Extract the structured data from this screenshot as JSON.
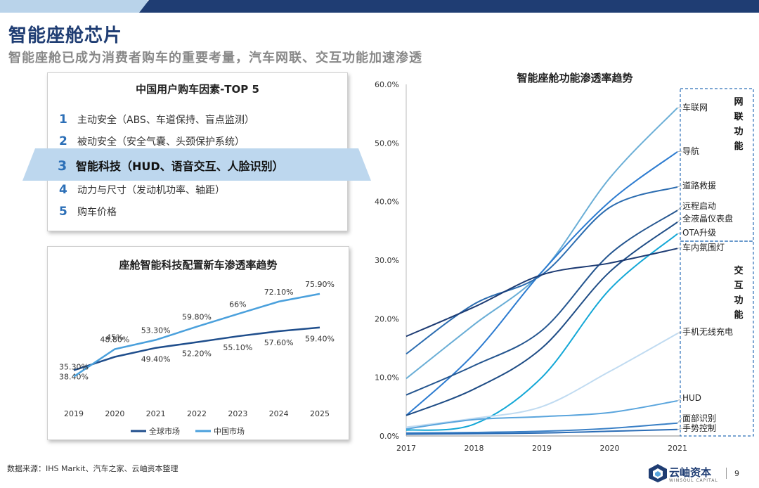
{
  "header": {
    "title": "智能座舱芯片",
    "subtitle": "智能座舱已成为消费者购车的重要考量，汽车网联、交互功能加速渗透"
  },
  "top5": {
    "title": "中国用户购车因素-TOP 5",
    "items": [
      {
        "num": "1",
        "text": "主动安全（ABS、车道保持、盲点监测）"
      },
      {
        "num": "2",
        "text": "被动安全（安全气囊、头颈保护系统）"
      },
      {
        "num": "3",
        "text": "智能科技（HUD、语音交互、人脸识别）"
      },
      {
        "num": "4",
        "text": "动力与尺寸（发动机功率、轴距）"
      },
      {
        "num": "5",
        "text": "购车价格"
      }
    ]
  },
  "chart_data": [
    {
      "type": "line",
      "title": "座舱智能科技配置新车渗透率趋势",
      "x": [
        "2019",
        "2020",
        "2021",
        "2022",
        "2023",
        "2024",
        "2025"
      ],
      "ylim": [
        30,
        80
      ],
      "series": [
        {
          "name": "全球市场",
          "values": [
            38.4,
            45,
            49.4,
            52.2,
            55.1,
            57.6,
            59.4
          ],
          "labels": [
            "38.40%",
            "45%",
            "49.40%",
            "52.20%",
            "55.10%",
            "57.60%",
            "59.40%"
          ],
          "color": "#1f4e8c"
        },
        {
          "name": "中国市场",
          "values": [
            35.3,
            48.8,
            53.3,
            59.8,
            66,
            72.1,
            75.9
          ],
          "labels": [
            "35.30%",
            "48.80%",
            "53.30%",
            "59.80%",
            "66%",
            "72.10%",
            "75.90%"
          ],
          "color": "#4aa0dc"
        }
      ]
    },
    {
      "type": "line",
      "title": "智能座舱功能渗透率趋势",
      "x": [
        "2017",
        "2018",
        "2019",
        "2020",
        "2021"
      ],
      "ylim": [
        0,
        60
      ],
      "yticks": [
        "0.0%",
        "10.0%",
        "20.0%",
        "30.0%",
        "40.0%",
        "50.0%",
        "60.0%"
      ],
      "groups": [
        {
          "label": "网联功能",
          "chars": [
            "网",
            "联",
            "功",
            "能"
          ]
        },
        {
          "label": "交互功能",
          "chars": [
            "交",
            "互",
            "功",
            "能"
          ]
        }
      ],
      "series": [
        {
          "name": "车联网",
          "values": [
            9.8,
            19,
            28,
            44,
            56
          ],
          "color": "#6aaed6"
        },
        {
          "name": "导航",
          "values": [
            3.5,
            14,
            28,
            40,
            48.5
          ],
          "color": "#2c7bd0"
        },
        {
          "name": "道路救援",
          "values": [
            14,
            22.5,
            27.5,
            39,
            42.5
          ],
          "color": "#2b6cb0"
        },
        {
          "name": "远程启动",
          "values": [
            7,
            12,
            18,
            31,
            38.5
          ],
          "color": "#24558f"
        },
        {
          "name": "全液晶仪表盘",
          "values": [
            3.5,
            8,
            15,
            28,
            36.5
          ],
          "color": "#1e4c85"
        },
        {
          "name": "OTA升级",
          "values": [
            1,
            2,
            10,
            25,
            34.5
          ],
          "color": "#12a7d6"
        },
        {
          "name": "车内氛围灯",
          "values": [
            17,
            22,
            27.5,
            29.5,
            32
          ],
          "color": "#1d3b73"
        },
        {
          "name": "手机无线充电",
          "values": [
            1.5,
            3,
            5,
            11,
            17.5
          ],
          "color": "#c0dbf1"
        },
        {
          "name": "HUD",
          "values": [
            1.2,
            2.8,
            3.3,
            4,
            6
          ],
          "color": "#5aa5dd"
        },
        {
          "name": "面部识别",
          "values": [
            0.5,
            0.6,
            0.8,
            1.3,
            2.2
          ],
          "color": "#3a80c6"
        },
        {
          "name": "手势控制",
          "values": [
            0.3,
            0.4,
            0.5,
            0.8,
            1.1
          ],
          "color": "#2a6cb5"
        }
      ]
    }
  ],
  "footer": {
    "source": "数据来源：IHS Markit、汽车之家、云岫资本整理",
    "logo_text": "云岫资本",
    "logo_sub": "WINSOUL CAPITAL",
    "page": "9"
  },
  "colors": {
    "brand_dark": "#1f3d73",
    "brand_light": "#b9d3ea",
    "highlight": "#bdd7ee",
    "number_blue": "#2c6fb7"
  }
}
